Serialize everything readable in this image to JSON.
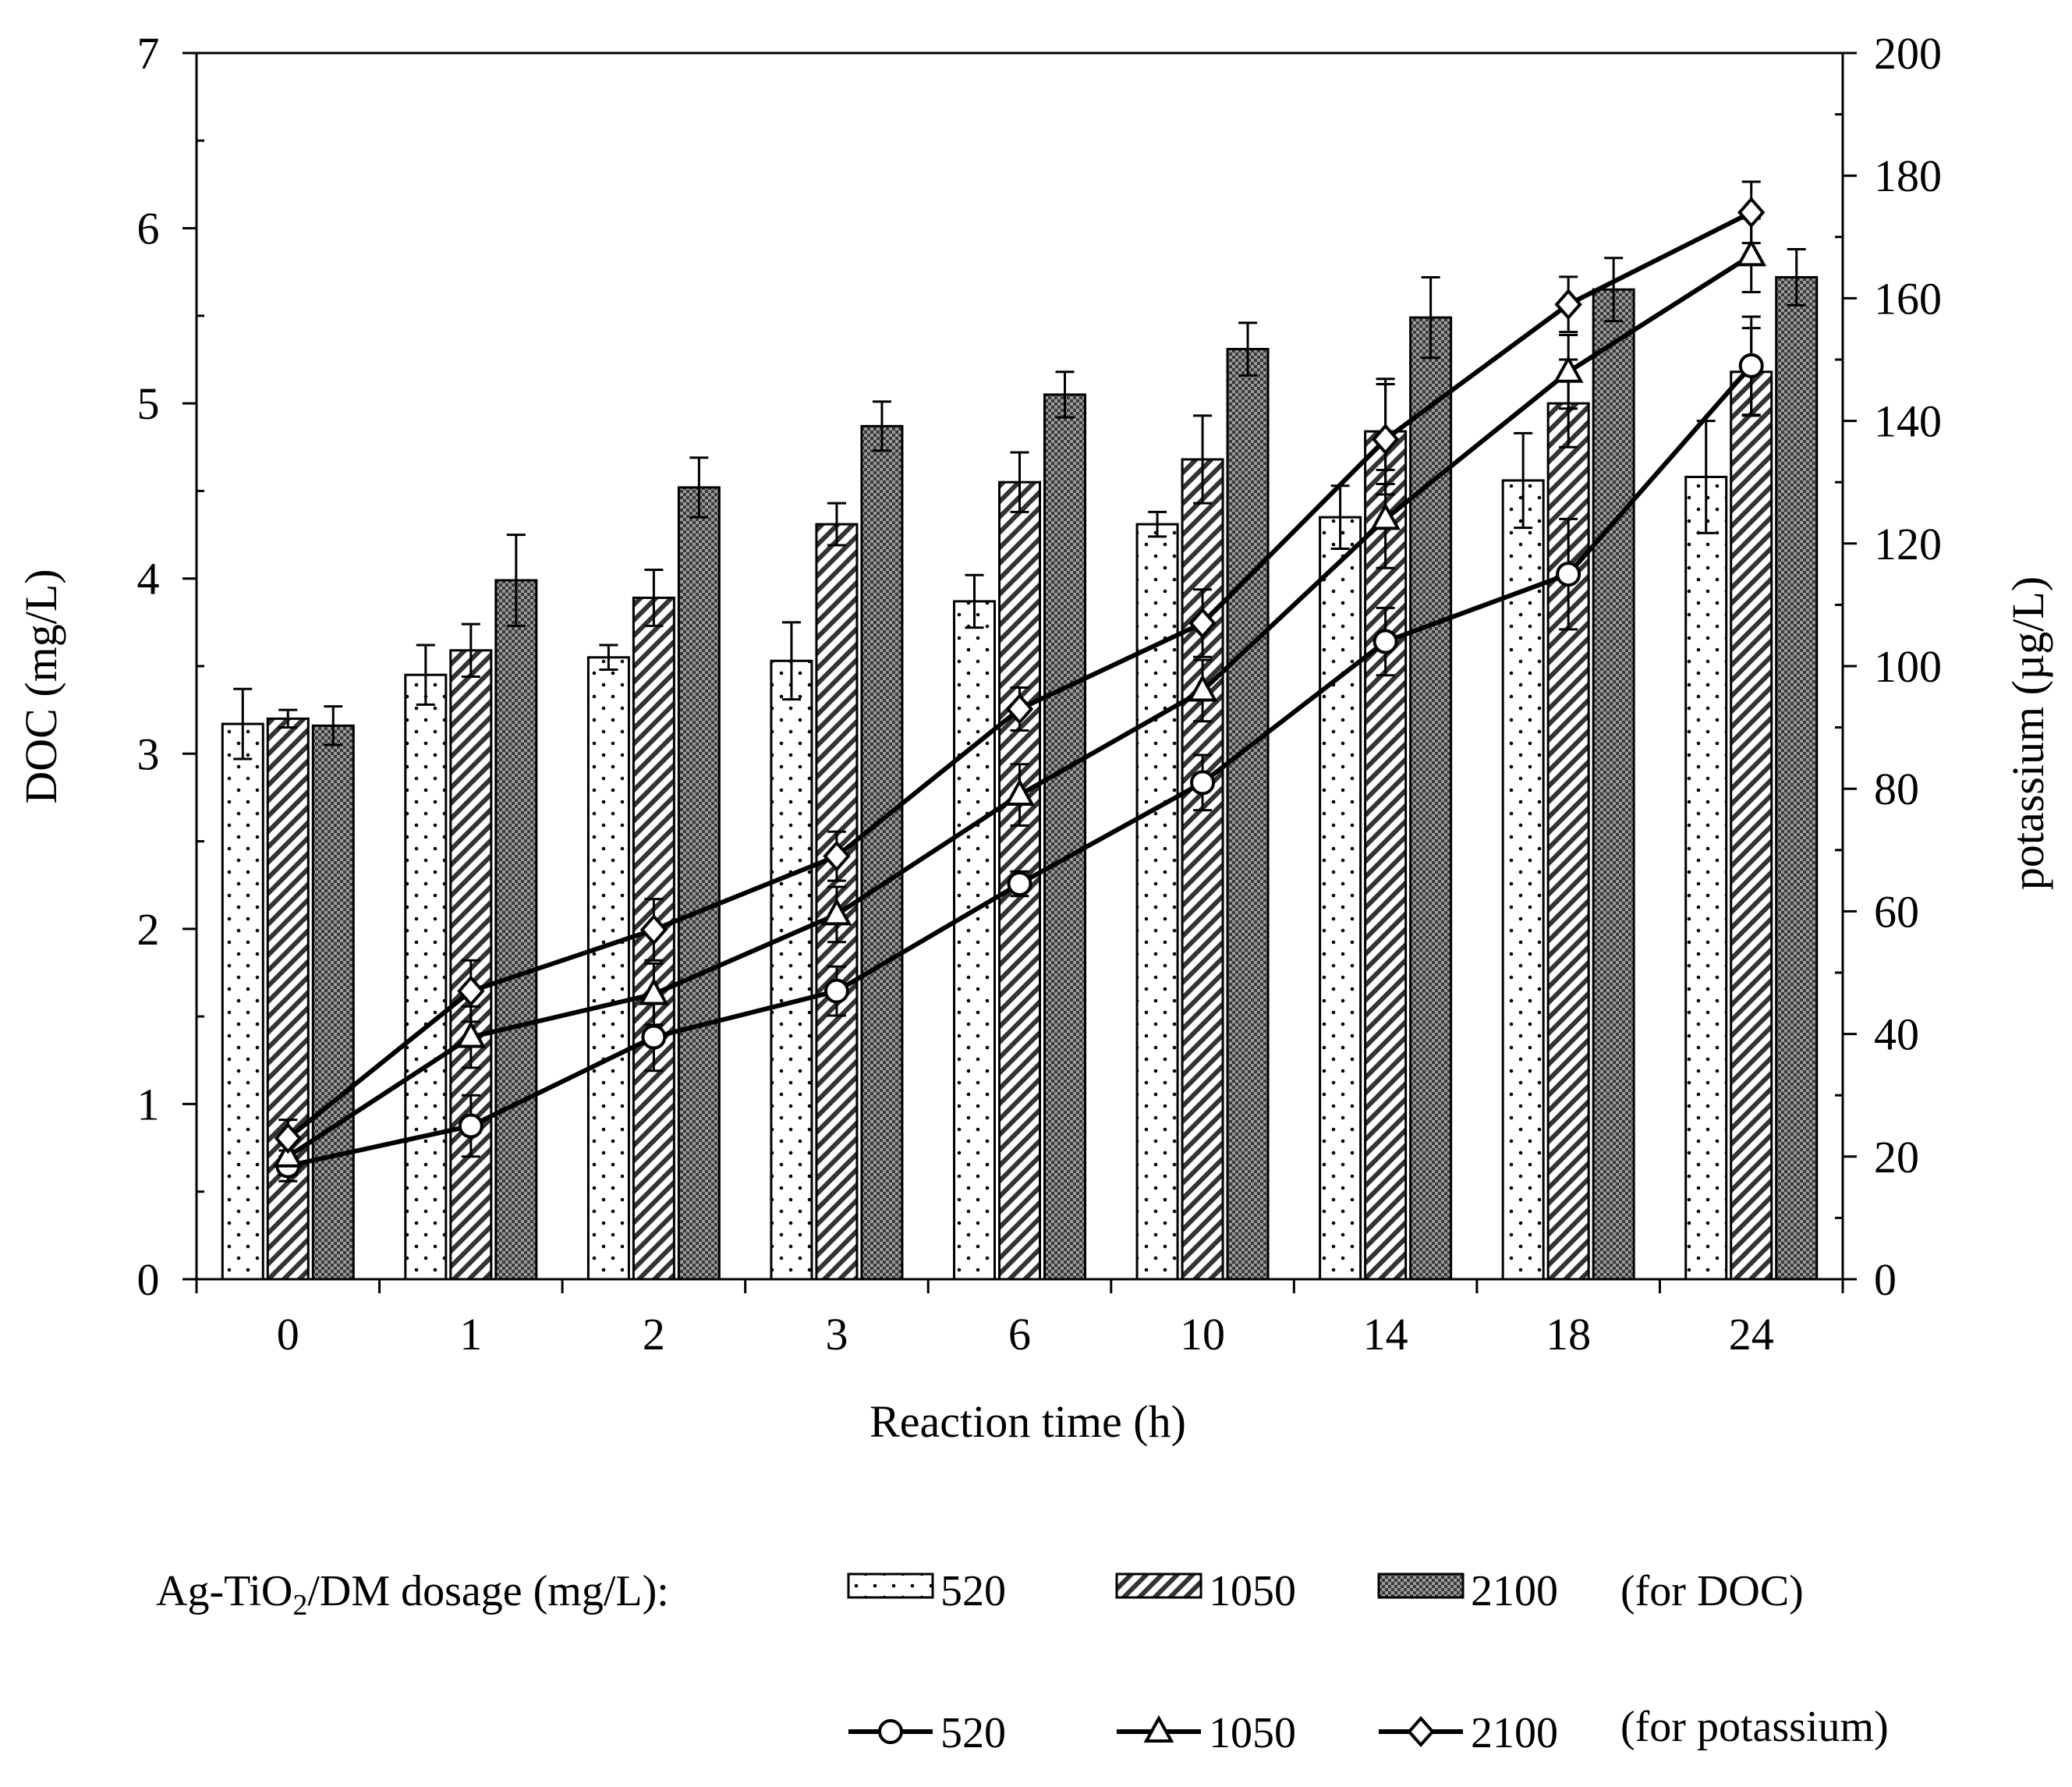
{
  "chart_data": {
    "type": "bar+line",
    "xlabel": "Reaction time (h)",
    "ylabel_left": "DOC (mg/L)",
    "ylabel_right": "potassium (µg/L)",
    "ylim_left": [
      0,
      7
    ],
    "ylim_right": [
      0,
      200
    ],
    "yticks_left": [
      "0",
      "1",
      "2",
      "3",
      "4",
      "5",
      "6",
      "7"
    ],
    "yticks_right": [
      "0",
      "20",
      "40",
      "60",
      "80",
      "100",
      "120",
      "140",
      "160",
      "180",
      "200"
    ],
    "categories": [
      "0",
      "1",
      "2",
      "3",
      "6",
      "10",
      "14",
      "18",
      "24"
    ],
    "bar_series": [
      {
        "name": "520",
        "pattern": "dots",
        "values": [
          3.17,
          3.45,
          3.55,
          3.53,
          3.87,
          4.31,
          4.35,
          4.56,
          4.58
        ],
        "errors": [
          0.2,
          0.17,
          0.07,
          0.22,
          0.15,
          0.07,
          0.18,
          0.27,
          0.32
        ]
      },
      {
        "name": "1050",
        "pattern": "hatch",
        "values": [
          3.2,
          3.59,
          3.89,
          4.31,
          4.55,
          4.68,
          4.84,
          5.0,
          5.18
        ],
        "errors": [
          0.05,
          0.15,
          0.16,
          0.12,
          0.17,
          0.25,
          0.3,
          0.25,
          0.25
        ]
      },
      {
        "name": "2100",
        "pattern": "checker",
        "values": [
          3.16,
          3.99,
          4.52,
          4.87,
          5.05,
          5.31,
          5.49,
          5.65,
          5.72
        ],
        "errors": [
          0.11,
          0.26,
          0.17,
          0.14,
          0.13,
          0.15,
          0.23,
          0.18,
          0.16
        ]
      }
    ],
    "line_series": [
      {
        "name": "520",
        "marker": "circle",
        "values": [
          18.5,
          25,
          39.5,
          47,
          64.5,
          81,
          104,
          115,
          149
        ],
        "errors": [
          2.5,
          5,
          5.5,
          4,
          2,
          4.5,
          5.5,
          9,
          8
        ]
      },
      {
        "name": "1050",
        "marker": "triangle",
        "values": [
          20,
          39.5,
          46.5,
          59.5,
          79,
          96,
          124,
          148,
          167
        ],
        "errors": [
          3,
          5,
          5,
          4.5,
          5,
          5,
          8,
          6,
          6
        ]
      },
      {
        "name": "2100",
        "marker": "diamond",
        "values": [
          23,
          47,
          57,
          69,
          93,
          107,
          137,
          159,
          174
        ],
        "errors": [
          3,
          5,
          5,
          4,
          3.5,
          5.5,
          9,
          4.5,
          5
        ]
      }
    ],
    "legend": {
      "title_prefix": "Ag-TiO",
      "title_sub": "2",
      "title_suffix": "/DM dosage (mg/L):",
      "bar_note": "(for DOC)",
      "line_note": "(for potassium)",
      "position": "bottom"
    },
    "grid": false
  }
}
